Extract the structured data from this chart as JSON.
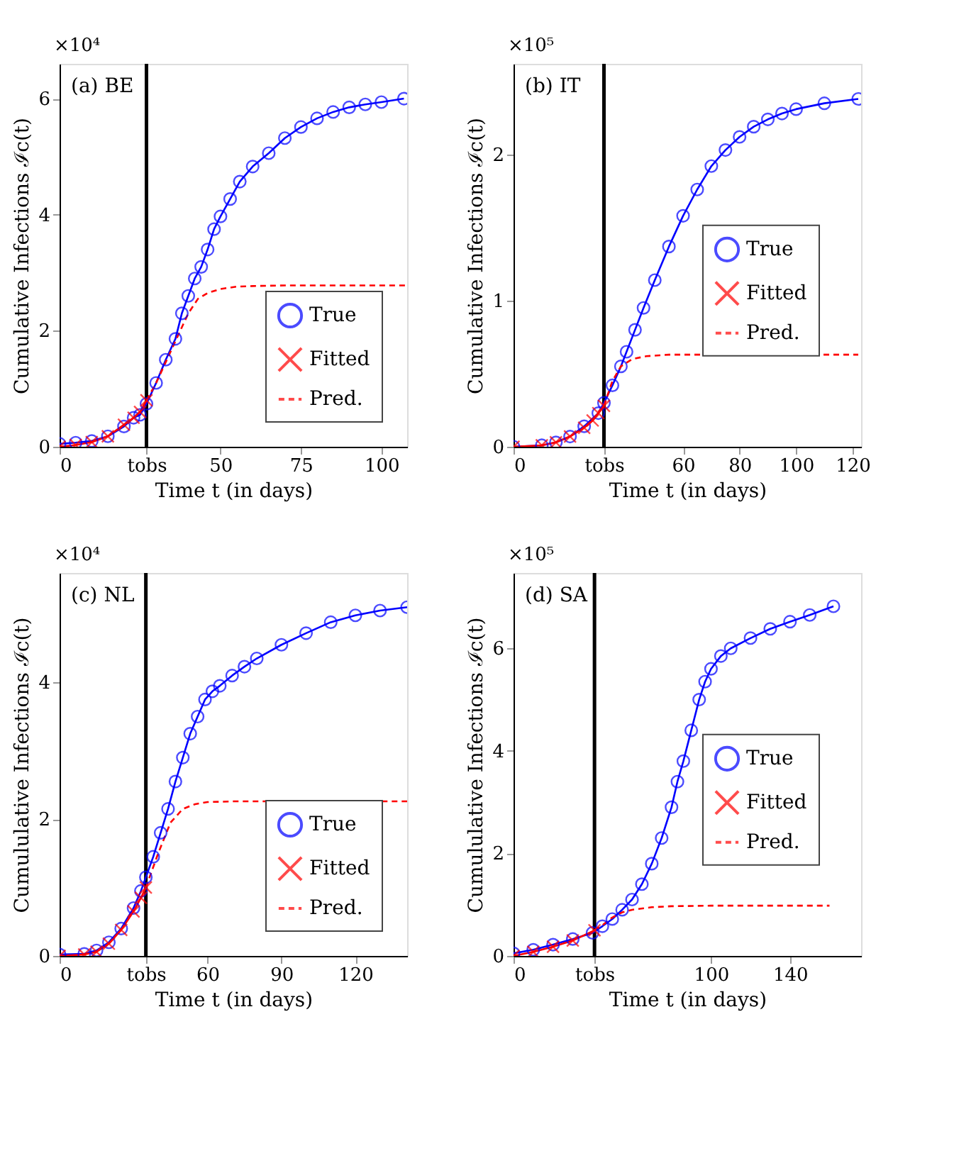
{
  "chart_data": [
    {
      "type": "line",
      "title": "(a) BE",
      "xlabel": "Time t (in days)",
      "ylabel": "Cumulative Infections ℐc(t)",
      "annotations": [
        "×10⁴"
      ],
      "xlim": [
        0,
        108
      ],
      "xticks": [
        0,
        {
          "value": 27,
          "label": "tobs"
        },
        50,
        75,
        100
      ],
      "ylim": [
        0,
        6.6
      ],
      "yticks": [
        0,
        2,
        4,
        6
      ],
      "grid": false,
      "legend": "bottom right",
      "ref_lines": [
        {
          "axis": "x",
          "value": 27,
          "color": "#000000"
        }
      ],
      "series": [
        {
          "name": "True",
          "color": "#0000ff",
          "marker": "circle",
          "line_style": "solid",
          "x": [
            0,
            5,
            10,
            15,
            20,
            23,
            25,
            27,
            30,
            33,
            36,
            38,
            40,
            42,
            44,
            46,
            48,
            50,
            53,
            56,
            60,
            65,
            70,
            75,
            80,
            85,
            90,
            95,
            100,
            107
          ],
          "values": [
            0.05,
            0.07,
            0.1,
            0.18,
            0.35,
            0.5,
            0.55,
            0.74,
            1.1,
            1.5,
            1.86,
            2.3,
            2.6,
            2.9,
            3.1,
            3.4,
            3.75,
            3.97,
            4.27,
            4.57,
            4.83,
            5.06,
            5.32,
            5.51,
            5.66,
            5.77,
            5.85,
            5.9,
            5.94,
            6.0
          ]
        },
        {
          "name": "Fitted",
          "color": "#ff0000",
          "marker": "cross",
          "line_style": "solid",
          "x": [
            0,
            5,
            10,
            15,
            20,
            23,
            25,
            27
          ],
          "values": [
            0.0,
            0.03,
            0.08,
            0.18,
            0.38,
            0.5,
            0.6,
            0.8
          ]
        },
        {
          "name": "Pred.",
          "color": "#ff0000",
          "marker": "none",
          "line_style": "dashed",
          "x": [
            27,
            30,
            35,
            40,
            43,
            46,
            50,
            55,
            60,
            70,
            108
          ],
          "values": [
            0.8,
            1.1,
            1.7,
            2.3,
            2.55,
            2.65,
            2.72,
            2.76,
            2.77,
            2.78,
            2.78
          ]
        }
      ]
    },
    {
      "type": "line",
      "title": "(b) IT",
      "xlabel": "Time t (in days)",
      "ylabel": "Cumulative Infections ℐc(t)",
      "annotations": [
        "×10⁵"
      ],
      "xlim": [
        0,
        123
      ],
      "xticks": [
        0,
        {
          "value": 32,
          "label": "tobs"
        },
        60,
        80,
        100,
        120
      ],
      "ylim": [
        0,
        2.62
      ],
      "yticks": [
        0,
        1,
        2
      ],
      "grid": false,
      "legend": "right",
      "ref_lines": [
        {
          "axis": "x",
          "value": 32,
          "color": "#000000"
        }
      ],
      "series": [
        {
          "name": "True",
          "color": "#0000ff",
          "marker": "circle",
          "line_style": "solid",
          "x": [
            0,
            10,
            15,
            20,
            25,
            30,
            32,
            35,
            38,
            40,
            43,
            46,
            50,
            55,
            60,
            65,
            70,
            75,
            80,
            85,
            90,
            95,
            100,
            110,
            122
          ],
          "values": [
            0.0,
            0.01,
            0.03,
            0.07,
            0.14,
            0.23,
            0.3,
            0.42,
            0.55,
            0.65,
            0.8,
            0.95,
            1.14,
            1.37,
            1.58,
            1.76,
            1.92,
            2.03,
            2.12,
            2.19,
            2.24,
            2.28,
            2.31,
            2.35,
            2.38
          ]
        },
        {
          "name": "Fitted",
          "color": "#ff0000",
          "marker": "cross",
          "line_style": "solid",
          "x": [
            0,
            10,
            15,
            20,
            25,
            28,
            30,
            32
          ],
          "values": [
            0.0,
            0.01,
            0.03,
            0.07,
            0.13,
            0.18,
            0.23,
            0.28
          ]
        },
        {
          "name": "Pred.",
          "color": "#ff0000",
          "marker": "none",
          "line_style": "dashed",
          "x": [
            32,
            35,
            38,
            42,
            47,
            55,
            122
          ],
          "values": [
            0.28,
            0.45,
            0.55,
            0.6,
            0.62,
            0.63,
            0.63
          ]
        }
      ]
    },
    {
      "type": "line",
      "title": "(c) NL",
      "xlabel": "Time t (in days)",
      "ylabel": "Cumululative Infections ℐc(t)",
      "annotations": [
        "×10⁴"
      ],
      "xlim": [
        0,
        141
      ],
      "xticks": [
        0,
        {
          "value": 35,
          "label": "tobs"
        },
        60,
        90,
        120
      ],
      "ylim": [
        0,
        5.6
      ],
      "yticks": [
        0,
        2,
        4
      ],
      "grid": false,
      "legend": "bottom right",
      "ref_lines": [
        {
          "axis": "x",
          "value": 35,
          "color": "#000000"
        }
      ],
      "series": [
        {
          "name": "True",
          "color": "#0000ff",
          "marker": "circle",
          "line_style": "solid",
          "x": [
            0,
            10,
            15,
            20,
            25,
            30,
            33,
            35,
            38,
            41,
            44,
            47,
            50,
            53,
            56,
            59,
            62,
            65,
            70,
            75,
            80,
            90,
            100,
            110,
            120,
            130,
            141
          ],
          "values": [
            0.02,
            0.03,
            0.08,
            0.2,
            0.4,
            0.7,
            0.95,
            1.15,
            1.45,
            1.8,
            2.15,
            2.55,
            2.9,
            3.25,
            3.5,
            3.75,
            3.87,
            3.95,
            4.1,
            4.23,
            4.35,
            4.55,
            4.72,
            4.88,
            4.98,
            5.05,
            5.1
          ]
        },
        {
          "name": "Fitted",
          "color": "#ff0000",
          "marker": "cross",
          "line_style": "solid",
          "x": [
            0,
            10,
            15,
            20,
            25,
            30,
            33,
            35
          ],
          "values": [
            0.0,
            0.02,
            0.06,
            0.18,
            0.38,
            0.65,
            0.85,
            1.0
          ]
        },
        {
          "name": "Pred.",
          "color": "#ff0000",
          "marker": "none",
          "line_style": "dashed",
          "x": [
            35,
            40,
            45,
            50,
            55,
            60,
            70,
            141
          ],
          "values": [
            1.0,
            1.5,
            1.95,
            2.15,
            2.22,
            2.25,
            2.26,
            2.26
          ]
        }
      ]
    },
    {
      "type": "line",
      "title": "(d) SA",
      "xlabel": "Time t (in days)",
      "ylabel": "Cumululative Infections ℐc(t)",
      "annotations": [
        "×10⁵"
      ],
      "xlim": [
        0,
        176
      ],
      "xticks": [
        0,
        {
          "value": 41,
          "label": "tobs"
        },
        100,
        140
      ],
      "ylim": [
        0,
        7.47
      ],
      "yticks": [
        0,
        2,
        4,
        6
      ],
      "grid": false,
      "legend": "right",
      "ref_lines": [
        {
          "axis": "x",
          "value": 41,
          "color": "#000000"
        }
      ],
      "series": [
        {
          "name": "True",
          "color": "#0000ff",
          "marker": "circle",
          "line_style": "solid",
          "x": [
            0,
            10,
            20,
            30,
            40,
            45,
            50,
            55,
            60,
            65,
            70,
            75,
            80,
            83,
            86,
            90,
            94,
            97,
            100,
            105,
            110,
            120,
            130,
            140,
            150,
            162
          ],
          "values": [
            0.05,
            0.12,
            0.22,
            0.33,
            0.45,
            0.58,
            0.72,
            0.9,
            1.1,
            1.4,
            1.8,
            2.3,
            2.9,
            3.4,
            3.8,
            4.4,
            5.0,
            5.35,
            5.6,
            5.85,
            6.0,
            6.2,
            6.38,
            6.52,
            6.65,
            6.82
          ]
        },
        {
          "name": "Fitted",
          "color": "#ff0000",
          "marker": "cross",
          "line_style": "solid",
          "x": [
            0,
            10,
            20,
            30,
            41
          ],
          "values": [
            0.0,
            0.08,
            0.18,
            0.3,
            0.5
          ]
        },
        {
          "name": "Pred.",
          "color": "#ff0000",
          "marker": "none",
          "line_style": "dashed",
          "x": [
            41,
            45,
            50,
            55,
            60,
            70,
            80,
            100,
            160
          ],
          "values": [
            0.5,
            0.6,
            0.75,
            0.85,
            0.9,
            0.95,
            0.97,
            0.98,
            0.98
          ]
        }
      ]
    }
  ]
}
